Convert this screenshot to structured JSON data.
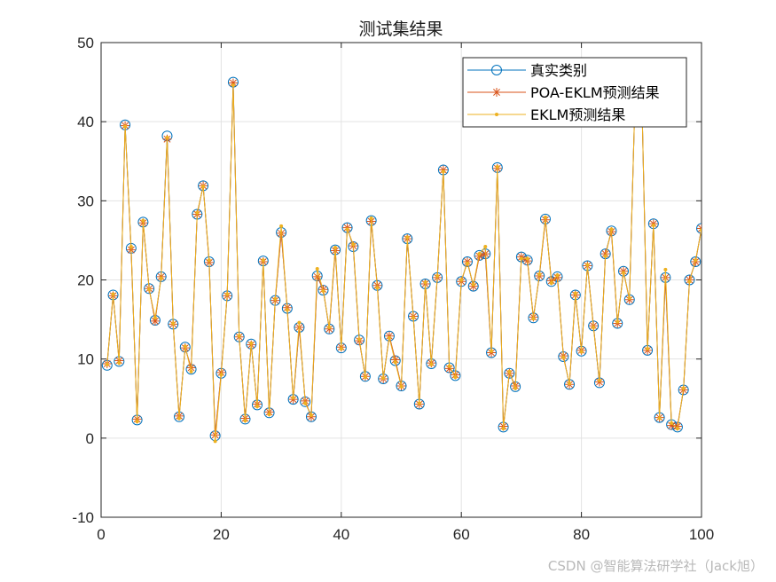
{
  "chart_data": {
    "type": "line",
    "title": "测试集结果",
    "xlabel": "",
    "ylabel": "",
    "xlim": [
      0,
      100
    ],
    "ylim": [
      -10,
      50
    ],
    "xticks": [
      0,
      20,
      40,
      60,
      80,
      100
    ],
    "yticks": [
      -10,
      0,
      10,
      20,
      30,
      40,
      50
    ],
    "grid": true,
    "legend_position": "top-right",
    "x": [
      1,
      2,
      3,
      4,
      5,
      6,
      7,
      8,
      9,
      10,
      11,
      12,
      13,
      14,
      15,
      16,
      17,
      18,
      19,
      20,
      21,
      22,
      23,
      24,
      25,
      26,
      27,
      28,
      29,
      30,
      31,
      32,
      33,
      34,
      35,
      36,
      37,
      38,
      39,
      40,
      41,
      42,
      43,
      44,
      45,
      46,
      47,
      48,
      49,
      50,
      51,
      52,
      53,
      54,
      55,
      56,
      57,
      58,
      59,
      60,
      61,
      62,
      63,
      64,
      65,
      66,
      67,
      68,
      69,
      70,
      71,
      72,
      73,
      74,
      75,
      76,
      77,
      78,
      79,
      80,
      81,
      82,
      83,
      84,
      85,
      86,
      87,
      88,
      89,
      90,
      91,
      92,
      93,
      94,
      95,
      96,
      97,
      98,
      99,
      100
    ],
    "series": [
      {
        "name": "真实类别",
        "color": "#0072BD",
        "marker": "circle",
        "values": [
          9.2,
          18.1,
          9.7,
          39.6,
          24.0,
          2.3,
          27.3,
          18.9,
          14.9,
          20.4,
          38.2,
          14.4,
          2.7,
          11.5,
          8.7,
          28.3,
          31.9,
          22.3,
          0.3,
          8.2,
          18.0,
          45.0,
          12.8,
          2.4,
          11.9,
          4.2,
          22.4,
          3.2,
          17.4,
          26.0,
          16.4,
          4.9,
          14.0,
          4.6,
          2.7,
          20.5,
          18.7,
          13.8,
          23.8,
          11.4,
          26.6,
          24.2,
          12.4,
          7.8,
          27.5,
          19.3,
          7.5,
          12.9,
          9.8,
          6.6,
          25.2,
          15.4,
          4.3,
          19.5,
          9.4,
          20.3,
          33.9,
          8.9,
          7.9,
          19.8,
          22.3,
          19.2,
          23.1,
          23.3,
          10.8,
          34.2,
          1.4,
          8.2,
          6.5,
          22.9,
          22.5,
          15.2,
          20.5,
          27.7,
          19.8,
          20.4,
          10.3,
          6.8,
          18.1,
          11.0,
          21.8,
          14.2,
          7.0,
          23.3,
          26.2,
          14.5,
          21.1,
          17.5,
          45.0,
          45.0,
          11.1,
          27.1,
          2.6,
          20.3,
          1.7,
          1.4,
          6.1,
          20.0,
          22.3,
          26.5
        ]
      },
      {
        "name": "POA-EKLM预测结果",
        "color": "#D95319",
        "marker": "star",
        "values": [
          9.4,
          18.0,
          9.8,
          39.5,
          23.8,
          2.4,
          27.2,
          18.9,
          14.8,
          20.4,
          37.8,
          14.4,
          2.8,
          11.4,
          8.9,
          28.3,
          31.9,
          22.2,
          0.4,
          8.3,
          18.0,
          44.9,
          12.8,
          2.5,
          11.8,
          4.3,
          22.3,
          3.3,
          17.4,
          25.9,
          16.5,
          4.9,
          14.0,
          4.7,
          2.7,
          20.4,
          18.8,
          13.8,
          23.7,
          11.5,
          26.6,
          24.3,
          12.3,
          7.8,
          27.4,
          19.3,
          7.5,
          12.9,
          9.9,
          6.6,
          25.2,
          15.4,
          4.3,
          19.5,
          9.5,
          20.3,
          33.9,
          8.8,
          8.0,
          19.8,
          22.3,
          19.2,
          23.0,
          23.3,
          10.8,
          34.1,
          1.5,
          8.2,
          6.6,
          22.9,
          22.4,
          15.3,
          20.5,
          27.6,
          19.9,
          20.3,
          10.4,
          6.8,
          18.1,
          11.1,
          21.8,
          14.2,
          7.1,
          23.3,
          26.1,
          14.5,
          21.1,
          17.5,
          45.0,
          45.0,
          11.1,
          27.1,
          2.6,
          20.3,
          1.6,
          1.5,
          6.1,
          20.0,
          22.3,
          26.5
        ]
      },
      {
        "name": "EKLM预测结果",
        "color": "#EDB120",
        "marker": "dot",
        "values": [
          9.3,
          18.2,
          9.5,
          39.4,
          24.2,
          2.1,
          27.5,
          18.8,
          15.2,
          20.2,
          38.0,
          14.5,
          2.5,
          11.6,
          8.4,
          28.5,
          31.8,
          22.5,
          -0.4,
          8.0,
          18.2,
          44.6,
          12.9,
          2.2,
          12.0,
          4.0,
          22.5,
          3.0,
          17.6,
          26.8,
          16.2,
          5.1,
          14.6,
          4.4,
          2.9,
          21.4,
          18.6,
          14.0,
          24.1,
          11.3,
          26.4,
          24.5,
          12.5,
          7.7,
          27.8,
          19.0,
          7.6,
          12.7,
          9.6,
          6.5,
          25.4,
          15.2,
          4.4,
          19.7,
          9.3,
          20.5,
          33.7,
          9.1,
          7.7,
          20.0,
          22.1,
          19.4,
          23.3,
          24.2,
          11.0,
          34.3,
          1.2,
          8.4,
          6.3,
          22.7,
          22.7,
          15.1,
          20.7,
          27.9,
          19.6,
          20.6,
          10.2,
          6.9,
          18.3,
          10.9,
          21.9,
          14.0,
          7.3,
          23.0,
          26.4,
          14.7,
          20.9,
          17.7,
          45.0,
          45.0,
          11.3,
          26.9,
          2.5,
          21.3,
          1.9,
          1.2,
          6.3,
          19.8,
          22.5,
          26.3
        ]
      }
    ]
  },
  "watermark": "CSDN @智能算法研学社（Jack旭）"
}
